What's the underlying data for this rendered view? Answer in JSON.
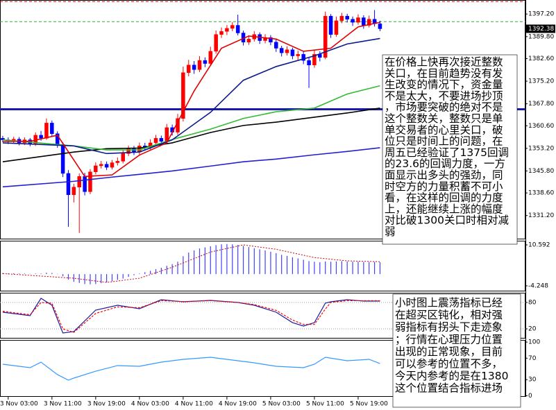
{
  "chart_data": [
    {
      "type": "candlestick",
      "xlim": [
        -0.5,
        95.6
      ],
      "xticks": [
        {
          "value": 1,
          "label": "3 Nov 03:00"
        },
        {
          "value": 9,
          "label": "3 Nov 11:00"
        },
        {
          "value": 17,
          "label": "3 Nov 19:00"
        },
        {
          "value": 25,
          "label": "4 Nov 03:00"
        },
        {
          "value": 33,
          "label": "4 Nov 11:00"
        },
        {
          "value": 41,
          "label": "4 Nov 19:00"
        },
        {
          "value": 49,
          "label": "5 Nov 03:00"
        },
        {
          "value": 57,
          "label": "5 Nov 11:00"
        },
        {
          "value": 65,
          "label": "5 Nov 19:00"
        }
      ],
      "ylim": [
        1323.4,
        1401.8
      ],
      "yticks": [
        {
          "value": 1397.2,
          "label": "1397.20"
        },
        {
          "value": 1389.8,
          "label": "1389.80"
        },
        {
          "value": 1382.6,
          "label": "1382.60"
        },
        {
          "value": 1375.2,
          "label": "1375.20"
        },
        {
          "value": 1367.8,
          "label": "1367.80"
        },
        {
          "value": 1360.6,
          "label": "1360.60"
        },
        {
          "value": 1353.2,
          "label": "1353.20"
        },
        {
          "value": 1345.8,
          "label": "1345.80"
        },
        {
          "value": 1338.6,
          "label": "1338.60"
        },
        {
          "value": 1331.2,
          "label": "1331.20"
        }
      ],
      "up_color": "#ff0000",
      "down_color": "#0000ff",
      "open": [
        1356.5,
        1356.0,
        1355.5,
        1356.2,
        1355.0,
        1356.0,
        1354.8,
        1357.5,
        1356.5,
        1361.5,
        1358.0,
        1354.5,
        1345.0,
        1338.0,
        1340.5,
        1344.0,
        1339.0,
        1345.5,
        1347.5,
        1348.0,
        1347.0,
        1348.5,
        1349.0,
        1351.5,
        1353.0,
        1352.0,
        1354.0,
        1353.5,
        1355.0,
        1356.5,
        1355.5,
        1360.0,
        1358.5,
        1363.0,
        1378.0,
        1380.5,
        1379.0,
        1382.0,
        1381.0,
        1385.0,
        1390.5,
        1391.5,
        1392.5,
        1393.5,
        1391.0,
        1388.0,
        1389.0,
        1390.5,
        1388.5,
        1389.5,
        1388.0,
        1386.0,
        1384.5,
        1385.5,
        1383.5,
        1384.0,
        1382.0,
        1380.5,
        1384.0,
        1383.0,
        1396.5,
        1390.5,
        1395.0,
        1396.5,
        1395.5,
        1394.5,
        1396.0,
        1393.5,
        1395.5,
        1394.0
      ],
      "high": [
        1357.3,
        1356.8,
        1357.0,
        1356.9,
        1356.8,
        1356.6,
        1358.4,
        1358.9,
        1363.0,
        1362.3,
        1358.8,
        1355.2,
        1346.1,
        1341.6,
        1345.0,
        1345.2,
        1346.4,
        1348.6,
        1349.1,
        1348.9,
        1349.4,
        1350.2,
        1352.6,
        1354.1,
        1354.0,
        1355.1,
        1355.0,
        1356.2,
        1357.6,
        1357.4,
        1361.2,
        1361.0,
        1364.5,
        1380.0,
        1382.2,
        1381.8,
        1383.4,
        1383.0,
        1386.5,
        1391.8,
        1392.8,
        1393.6,
        1394.6,
        1397.0,
        1391.8,
        1390.2,
        1391.6,
        1391.2,
        1390.6,
        1390.3,
        1388.9,
        1386.8,
        1386.6,
        1386.2,
        1385.2,
        1384.9,
        1382.9,
        1385.3,
        1385.0,
        1398.0,
        1397.2,
        1396.4,
        1397.6,
        1397.3,
        1396.4,
        1397.1,
        1396.8,
        1396.7,
        1398.5,
        1395.0
      ],
      "low": [
        1355.2,
        1354.6,
        1354.9,
        1354.2,
        1354.3,
        1353.9,
        1354.0,
        1355.7,
        1356.0,
        1357.2,
        1353.4,
        1343.8,
        1327.5,
        1335.5,
        1325.5,
        1337.8,
        1338.2,
        1344.7,
        1346.6,
        1346.1,
        1346.3,
        1347.6,
        1348.3,
        1350.7,
        1351.0,
        1351.2,
        1352.6,
        1352.8,
        1354.1,
        1354.5,
        1354.8,
        1357.4,
        1357.6,
        1362.0,
        1376.8,
        1377.6,
        1378.2,
        1379.8,
        1380.3,
        1384.2,
        1389.4,
        1390.3,
        1391.6,
        1390.2,
        1386.9,
        1387.1,
        1388.2,
        1387.4,
        1387.6,
        1387.0,
        1384.8,
        1383.3,
        1383.6,
        1382.4,
        1382.1,
        1380.8,
        1373.0,
        1379.6,
        1381.7,
        1382.4,
        1389.4,
        1389.8,
        1394.2,
        1394.4,
        1393.3,
        1393.7,
        1392.4,
        1392.8,
        1393.1,
        1391.6
      ],
      "close": [
        1356.0,
        1355.5,
        1356.2,
        1355.0,
        1356.0,
        1354.8,
        1357.5,
        1356.5,
        1361.5,
        1358.0,
        1354.5,
        1345.0,
        1338.0,
        1340.5,
        1344.0,
        1339.0,
        1345.5,
        1347.5,
        1348.0,
        1347.0,
        1348.5,
        1349.0,
        1351.5,
        1353.0,
        1352.0,
        1354.0,
        1353.5,
        1355.0,
        1356.5,
        1355.5,
        1360.0,
        1358.5,
        1363.0,
        1378.0,
        1380.5,
        1379.0,
        1382.0,
        1381.0,
        1385.0,
        1390.5,
        1391.5,
        1392.5,
        1393.5,
        1391.0,
        1388.0,
        1389.0,
        1390.5,
        1388.5,
        1389.5,
        1388.0,
        1386.0,
        1384.5,
        1385.5,
        1383.5,
        1384.0,
        1382.0,
        1380.5,
        1384.0,
        1383.0,
        1396.5,
        1390.5,
        1395.0,
        1396.5,
        1395.5,
        1394.5,
        1396.0,
        1393.5,
        1395.5,
        1394.0,
        1392.38
      ],
      "overlays": [
        {
          "color": "#2020d0",
          "x": [
            0,
            13,
            19,
            25,
            31,
            38,
            44,
            50,
            57,
            63,
            69
          ],
          "values": [
            1340.6,
            1342.4,
            1343.6,
            1344.7,
            1345.8,
            1347.4,
            1348.8,
            1349.7,
            1351.1,
            1352.2,
            1353.4
          ]
        },
        {
          "color": "#000000",
          "x": [
            0,
            13,
            19,
            25,
            31,
            38,
            44,
            50,
            57,
            63,
            69
          ],
          "values": [
            1348.8,
            1352.0,
            1353.1,
            1353.3,
            1355.0,
            1358.4,
            1360.7,
            1361.8,
            1363.4,
            1364.8,
            1366.4
          ]
        },
        {
          "color": "#33bb33",
          "x": [
            0,
            13,
            19,
            25,
            31,
            38,
            44,
            50,
            57,
            63,
            69
          ],
          "values": [
            1356.0,
            1354.0,
            1352.7,
            1352.7,
            1356.1,
            1359.5,
            1363.0,
            1365.2,
            1366.4,
            1371.0,
            1373.7
          ]
        },
        {
          "color": "#0a1a8c",
          "x": [
            0,
            13,
            19,
            25,
            31,
            38,
            44,
            50,
            57,
            63,
            69
          ],
          "values": [
            1355.0,
            1354.0,
            1351.5,
            1352.0,
            1356.0,
            1365.0,
            1375.5,
            1380.0,
            1383.5,
            1387.4,
            1389.2
          ]
        },
        {
          "color": "#e00000",
          "x": [
            0,
            5,
            10,
            15,
            20,
            25,
            30,
            35,
            40,
            45,
            50,
            55,
            60,
            65,
            69
          ],
          "values": [
            1355.5,
            1355.5,
            1357.5,
            1344.0,
            1344.5,
            1351.0,
            1355.0,
            1372.0,
            1386.0,
            1390.0,
            1389.0,
            1385.0,
            1386.0,
            1393.0,
            1394.5
          ]
        }
      ],
      "levels": [
        {
          "value": 1401.3,
          "color": "#ff0000",
          "style": "dashed"
        },
        {
          "value": 1394.7,
          "color": "#33aa33",
          "style": "dashed"
        },
        {
          "value": 1366.0,
          "color": "#1a1aa8",
          "style": "solid"
        }
      ]
    },
    {
      "type": "bar",
      "color": "#4040ff",
      "ylim": [
        -6.26,
        12.1
      ],
      "yticks": [
        10.592,
        -4.248
      ],
      "values": [
        0.4,
        0.3,
        0.3,
        0.2,
        0.2,
        0.1,
        0.2,
        0.2,
        0.5,
        0.4,
        0.1,
        -0.8,
        -2.0,
        -2.8,
        -3.2,
        -3.6,
        -3.7,
        -3.6,
        -3.3,
        -3.0,
        -2.6,
        -2.1,
        -1.6,
        -1.0,
        -0.4,
        0.2,
        0.7,
        1.2,
        1.8,
        2.3,
        3.0,
        3.6,
        4.5,
        6.5,
        7.8,
        8.6,
        9.3,
        9.7,
        10.1,
        10.5,
        10.8,
        10.9,
        10.8,
        10.6,
        10.2,
        9.8,
        9.4,
        9.0,
        8.6,
        8.1,
        7.6,
        7.0,
        6.6,
        6.1,
        5.7,
        5.2,
        4.7,
        4.5,
        4.3,
        4.6,
        4.5,
        4.6,
        4.7,
        4.6,
        4.5,
        4.5,
        4.4,
        4.4,
        4.4,
        4.3
      ],
      "signal": {
        "color": "#cc0000",
        "x": [
          0,
          13,
          19,
          25,
          31,
          38,
          44,
          50,
          57,
          63,
          69
        ],
        "values": [
          0.2,
          -1.5,
          -3.0,
          -1.5,
          2.5,
          8.0,
          10.6,
          9.0,
          6.0,
          4.8,
          4.5
        ]
      }
    },
    {
      "type": "line",
      "ylim": [
        -2,
        102
      ],
      "yticks": [
        80,
        20
      ],
      "grid": true,
      "series": [
        {
          "color": "#1a1aa0",
          "x": [
            0,
            5,
            7,
            9,
            11,
            13,
            17,
            21,
            25,
            29,
            33,
            38,
            43,
            46,
            50,
            53,
            55,
            57,
            59,
            60,
            63,
            66,
            69
          ],
          "values": [
            57.9,
            50.0,
            89.4,
            73.6,
            10.6,
            13.8,
            62.6,
            73.6,
            65.8,
            86.2,
            81.5,
            84.7,
            79.9,
            73.6,
            57.9,
            34.2,
            26.4,
            34.2,
            78.4,
            81.5,
            86.2,
            83.1,
            83.1
          ]
        },
        {
          "color": "#ff0000",
          "style": "dashed",
          "x": [
            0,
            5,
            7,
            9,
            11,
            13,
            17,
            21,
            25,
            29,
            33,
            38,
            43,
            46,
            50,
            53,
            55,
            57,
            59,
            60,
            63,
            66,
            69
          ],
          "values": [
            60,
            52,
            80,
            78,
            20,
            12,
            55,
            70,
            68,
            84,
            82,
            84,
            80,
            75,
            62,
            40,
            30,
            30,
            65,
            80,
            84,
            84,
            84
          ]
        }
      ]
    },
    {
      "type": "line",
      "ylim": [
        -2,
        104
      ],
      "yticks": [
        100,
        70,
        30,
        0
      ],
      "grid": false,
      "series": [
        {
          "color": "#3399ff",
          "x": [
            0,
            5,
            7,
            10,
            12,
            13,
            17,
            21,
            25,
            29,
            33,
            38,
            43,
            46,
            50,
            55,
            57,
            59,
            63,
            67,
            69
          ],
          "values": [
            58.8,
            52.3,
            62.6,
            39.4,
            29.0,
            32.9,
            45.8,
            56.2,
            54.9,
            62.6,
            67.8,
            71.7,
            65.2,
            61.3,
            54.9,
            52.3,
            58.8,
            71.7,
            65.2,
            67.8,
            60.0
          ]
        }
      ]
    }
  ],
  "annotations": [
    {
      "lines": [
        "在价格上快再次接近整数",
        "关口，在目前趋势没有发",
        "生改变的情况下，资金量",
        "不是太大，不要进场抄顶",
        "，市场要突破的绝对不是",
        "这个整数关，整数只是单",
        "单交易者的心里关口，破",
        "位只是时间上的问题，在",
        "周五已经验证了1375回调",
        "的23.6的回调力度，一方",
        "面显示出多头的强劲，同",
        "时空方的力量积蓄不可小",
        "看，在这样的回调的力度",
        "上，还能继续上涨的幅度",
        "对比破1300关口时相对减",
        "弱"
      ]
    },
    {
      "lines": [
        "小时图上震荡指标已经",
        "在超买区钝化，相对强",
        "弱指标有拐头下走迹象",
        "；行情在心理压力位置",
        "出现的正常现象，目前",
        "可以参考的位置不多，",
        "今天内参考的是在1380",
        "这个位置结合指标进场"
      ]
    }
  ]
}
